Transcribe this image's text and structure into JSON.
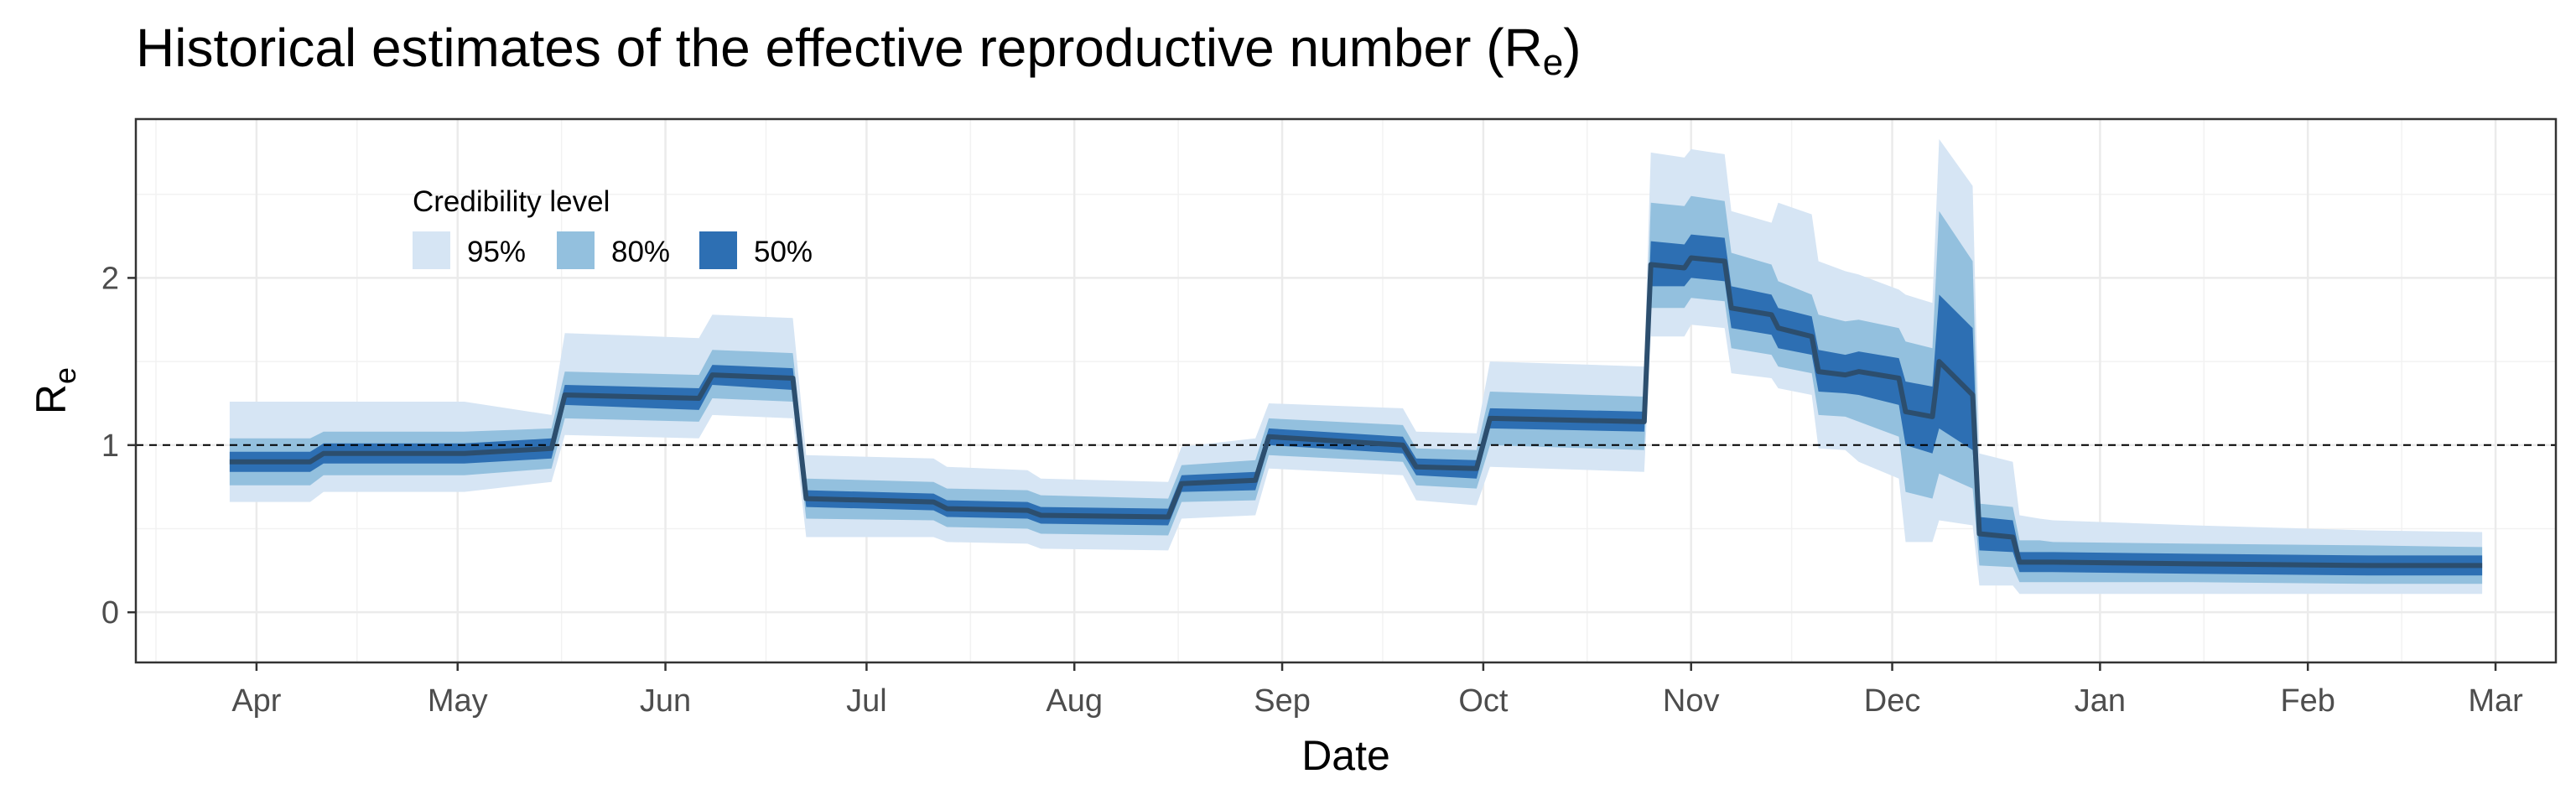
{
  "chart_data": {
    "type": "area",
    "title": "Historical estimates of the effective reproductive number (R",
    "title_subscript": "e",
    "title_suffix": ")",
    "xlabel": "Date",
    "ylabel": "R",
    "ylabel_subscript": "e",
    "ylim": [
      -0.3,
      2.95
    ],
    "xlim": [
      "2020-03-14",
      "2021-03-10"
    ],
    "grid": true,
    "reference_line": 1,
    "x_ticks": [
      {
        "date": "2020-04-01",
        "label": "Apr"
      },
      {
        "date": "2020-05-01",
        "label": "May"
      },
      {
        "date": "2020-06-01",
        "label": "Jun"
      },
      {
        "date": "2020-07-01",
        "label": "Jul"
      },
      {
        "date": "2020-08-01",
        "label": "Aug"
      },
      {
        "date": "2020-09-01",
        "label": "Sep"
      },
      {
        "date": "2020-10-01",
        "label": "Oct"
      },
      {
        "date": "2020-11-01",
        "label": "Nov"
      },
      {
        "date": "2020-12-01",
        "label": "Dec"
      },
      {
        "date": "2021-01-01",
        "label": "Jan"
      },
      {
        "date": "2021-02-01",
        "label": "Feb"
      },
      {
        "date": "2021-03-01",
        "label": "Mar"
      }
    ],
    "y_ticks": [
      0,
      1,
      2
    ],
    "legend": {
      "title": "Credibility level",
      "position": "top-left",
      "entries": [
        {
          "label": "95%",
          "color": "#d6e5f4"
        },
        {
          "label": "80%",
          "color": "#93c0de"
        },
        {
          "label": "50%",
          "color": "#2d6fb3"
        }
      ]
    },
    "median_color": "#2c4e6e",
    "series": {
      "x": [
        "2020-03-28",
        "2020-04-09",
        "2020-04-11",
        "2020-05-02",
        "2020-05-15",
        "2020-05-17",
        "2020-06-06",
        "2020-06-08",
        "2020-06-20",
        "2020-06-22",
        "2020-07-11",
        "2020-07-13",
        "2020-07-25",
        "2020-07-27",
        "2020-08-15",
        "2020-08-17",
        "2020-08-28",
        "2020-08-30",
        "2020-09-19",
        "2020-09-21",
        "2020-09-30",
        "2020-10-02",
        "2020-10-25",
        "2020-10-26",
        "2020-10-31",
        "2020-11-01",
        "2020-11-06",
        "2020-11-07",
        "2020-11-13",
        "2020-11-14",
        "2020-11-19",
        "2020-11-20",
        "2020-11-24",
        "2020-11-26",
        "2020-12-02",
        "2020-12-03",
        "2020-12-07",
        "2020-12-08",
        "2020-12-13",
        "2020-12-14",
        "2020-12-19",
        "2020-12-20",
        "2020-12-23",
        "2020-12-25",
        "2021-01-15",
        "2021-02-10",
        "2021-02-27"
      ],
      "median": [
        0.9,
        0.9,
        0.95,
        0.95,
        0.98,
        1.3,
        1.28,
        1.42,
        1.4,
        0.68,
        0.66,
        0.62,
        0.61,
        0.58,
        0.57,
        0.77,
        0.79,
        1.05,
        1.0,
        0.87,
        0.86,
        1.16,
        1.14,
        2.08,
        2.06,
        2.12,
        2.1,
        1.82,
        1.78,
        1.7,
        1.65,
        1.44,
        1.42,
        1.44,
        1.4,
        1.2,
        1.17,
        1.5,
        1.3,
        0.47,
        0.45,
        0.3,
        0.3,
        0.3,
        0.29,
        0.28,
        0.28
      ],
      "lower50": [
        0.84,
        0.84,
        0.89,
        0.89,
        0.92,
        1.24,
        1.21,
        1.36,
        1.33,
        0.63,
        0.61,
        0.57,
        0.56,
        0.53,
        0.52,
        0.72,
        0.73,
        1.0,
        0.95,
        0.82,
        0.8,
        1.1,
        1.08,
        1.95,
        1.95,
        2.0,
        1.98,
        1.7,
        1.66,
        1.58,
        1.54,
        1.32,
        1.31,
        1.3,
        1.24,
        1.0,
        0.95,
        1.1,
        0.97,
        0.37,
        0.36,
        0.24,
        0.24,
        0.24,
        0.23,
        0.22,
        0.22
      ],
      "upper50": [
        0.96,
        0.96,
        1.01,
        1.01,
        1.04,
        1.36,
        1.34,
        1.48,
        1.46,
        0.73,
        0.71,
        0.67,
        0.66,
        0.63,
        0.62,
        0.82,
        0.84,
        1.1,
        1.05,
        0.92,
        0.91,
        1.22,
        1.2,
        2.22,
        2.2,
        2.26,
        2.24,
        1.95,
        1.9,
        1.82,
        1.77,
        1.57,
        1.54,
        1.56,
        1.52,
        1.38,
        1.35,
        1.9,
        1.7,
        0.57,
        0.55,
        0.36,
        0.36,
        0.36,
        0.35,
        0.34,
        0.34
      ],
      "lower80": [
        0.76,
        0.76,
        0.82,
        0.82,
        0.86,
        1.16,
        1.14,
        1.28,
        1.26,
        0.56,
        0.55,
        0.51,
        0.5,
        0.47,
        0.46,
        0.66,
        0.67,
        0.94,
        0.9,
        0.76,
        0.74,
        1.0,
        0.97,
        1.82,
        1.82,
        1.88,
        1.86,
        1.58,
        1.54,
        1.47,
        1.43,
        1.18,
        1.17,
        1.14,
        1.05,
        0.72,
        0.68,
        0.83,
        0.74,
        0.28,
        0.27,
        0.18,
        0.18,
        0.18,
        0.18,
        0.17,
        0.17
      ],
      "upper80": [
        1.04,
        1.04,
        1.08,
        1.08,
        1.1,
        1.44,
        1.42,
        1.57,
        1.55,
        0.8,
        0.78,
        0.74,
        0.73,
        0.7,
        0.68,
        0.88,
        0.91,
        1.16,
        1.12,
        0.98,
        0.97,
        1.32,
        1.29,
        2.45,
        2.43,
        2.49,
        2.46,
        2.15,
        2.08,
        1.98,
        1.9,
        1.78,
        1.74,
        1.75,
        1.7,
        1.62,
        1.58,
        2.4,
        2.1,
        0.65,
        0.63,
        0.43,
        0.43,
        0.42,
        0.41,
        0.4,
        0.39
      ],
      "lower95": [
        0.66,
        0.66,
        0.72,
        0.72,
        0.78,
        1.06,
        1.04,
        1.18,
        1.16,
        0.45,
        0.45,
        0.42,
        0.41,
        0.38,
        0.37,
        0.56,
        0.58,
        0.86,
        0.82,
        0.67,
        0.64,
        0.87,
        0.84,
        1.65,
        1.65,
        1.72,
        1.7,
        1.43,
        1.4,
        1.34,
        1.3,
        0.98,
        0.97,
        0.9,
        0.8,
        0.42,
        0.42,
        0.55,
        0.52,
        0.16,
        0.16,
        0.11,
        0.11,
        0.11,
        0.11,
        0.11,
        0.11
      ],
      "upper95": [
        1.26,
        1.26,
        1.26,
        1.26,
        1.18,
        1.67,
        1.64,
        1.78,
        1.76,
        0.94,
        0.92,
        0.87,
        0.85,
        0.8,
        0.78,
        0.99,
        1.04,
        1.25,
        1.22,
        1.08,
        1.07,
        1.5,
        1.47,
        2.75,
        2.72,
        2.77,
        2.74,
        2.4,
        2.33,
        2.45,
        2.38,
        2.1,
        2.04,
        2.02,
        1.93,
        1.9,
        1.85,
        2.83,
        2.55,
        0.95,
        0.9,
        0.58,
        0.56,
        0.55,
        0.52,
        0.49,
        0.48
      ]
    }
  }
}
